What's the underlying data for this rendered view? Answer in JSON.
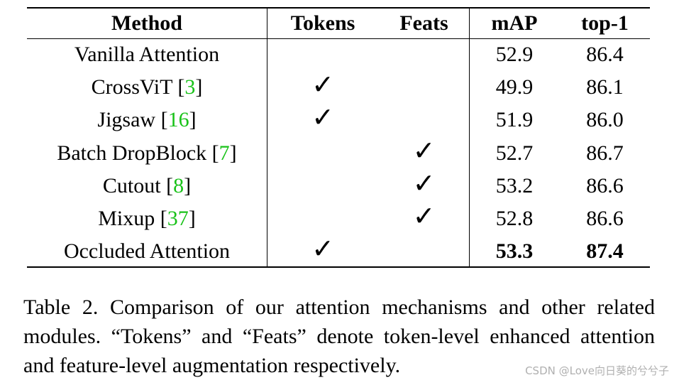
{
  "table": {
    "headers": {
      "method": "Method",
      "tokens": "Tokens",
      "feats": "Feats",
      "map": "mAP",
      "top1": "top-1"
    },
    "check_glyph": "✓",
    "rows": [
      {
        "name": "Vanilla Attention",
        "ref": "",
        "tokens": false,
        "feats": false,
        "map": "52.9",
        "top1": "86.4",
        "bold": false
      },
      {
        "name": "CrossViT",
        "ref": "3",
        "tokens": true,
        "feats": false,
        "map": "49.9",
        "top1": "86.1",
        "bold": false
      },
      {
        "name": "Jigsaw",
        "ref": "16",
        "tokens": true,
        "feats": false,
        "map": "51.9",
        "top1": "86.0",
        "bold": false
      },
      {
        "name": "Batch DropBlock",
        "ref": "7",
        "tokens": false,
        "feats": true,
        "map": "52.7",
        "top1": "86.7",
        "bold": false
      },
      {
        "name": "Cutout",
        "ref": "8",
        "tokens": false,
        "feats": true,
        "map": "53.2",
        "top1": "86.6",
        "bold": false
      },
      {
        "name": "Mixup",
        "ref": "37",
        "tokens": false,
        "feats": true,
        "map": "52.8",
        "top1": "86.6",
        "bold": false
      },
      {
        "name": "Occluded Attention",
        "ref": "",
        "tokens": true,
        "feats": false,
        "map": "53.3",
        "top1": "87.4",
        "bold": true
      }
    ],
    "ref_color": "#19c219"
  },
  "caption": "Table 2. Comparison of our attention mechanisms and other related modules. “Tokens” and “Feats” denote token-level enhanced attention and feature-level augmentation respectively.",
  "watermark": "CSDN @Love向日葵的兮兮子"
}
